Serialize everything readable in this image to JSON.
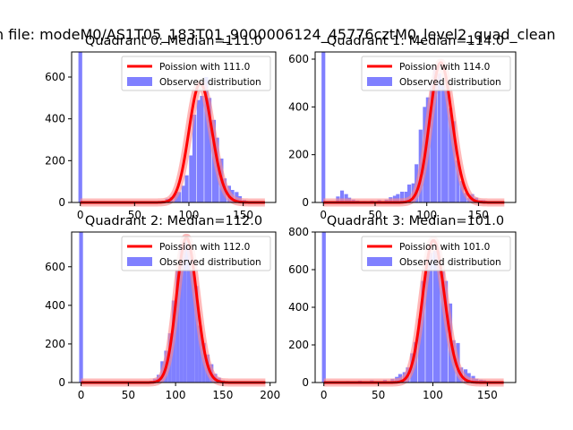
{
  "figure": {
    "suptitle": "n file: modeM0/AS1T05_183T01_9000006124_45776cztM0_level2_quad_clean"
  },
  "legend_labels": [
    "Poission with",
    "Observed distribution"
  ],
  "colors": {
    "hist": "#8080ff",
    "fit": "#ff0000",
    "fit_halo": "#ff8888"
  },
  "chart_data": [
    {
      "type": "bar",
      "title": "Quadrant 0: Median=111.0",
      "median": 111.0,
      "xlim": [
        -8,
        180
      ],
      "ylim": [
        0,
        720
      ],
      "xticks": [
        0,
        50,
        100,
        150
      ],
      "yticks": [
        0,
        200,
        400,
        600
      ],
      "legend": [
        "Poission with 111.0",
        "Observed distribution"
      ],
      "legend_position": "upper right",
      "bin_width": 3.5,
      "bins": [
        [
          0,
          720
        ],
        [
          76,
          8
        ],
        [
          80,
          18
        ],
        [
          84,
          26
        ],
        [
          88,
          42
        ],
        [
          91,
          50
        ],
        [
          95,
          80
        ],
        [
          98,
          130
        ],
        [
          102,
          225
        ],
        [
          105,
          420
        ],
        [
          109,
          490
        ],
        [
          112,
          510
        ],
        [
          116,
          600
        ],
        [
          119,
          500
        ],
        [
          123,
          395
        ],
        [
          126,
          310
        ],
        [
          130,
          210
        ],
        [
          133,
          115
        ],
        [
          137,
          80
        ],
        [
          140,
          60
        ],
        [
          144,
          50
        ],
        [
          147,
          30
        ],
        [
          151,
          12
        ],
        [
          155,
          4
        ]
      ],
      "poisson_lambda": 111.0,
      "poisson_peak": 570,
      "poisson_xrange": [
        0,
        170
      ]
    },
    {
      "type": "bar",
      "title": "Quadrant 1: Median=114.0",
      "median": 114.0,
      "xlim": [
        -8,
        186
      ],
      "ylim": [
        0,
        630
      ],
      "xticks": [
        0,
        50,
        100,
        150
      ],
      "yticks": [
        0,
        200,
        400,
        600
      ],
      "legend": [
        "Poission with 114.0",
        "Observed distribution"
      ],
      "legend_position": "upper right",
      "bin_width": 3.6,
      "bins": [
        [
          0,
          630
        ],
        [
          14,
          25
        ],
        [
          18,
          50
        ],
        [
          22,
          35
        ],
        [
          25,
          20
        ],
        [
          29,
          12
        ],
        [
          33,
          8
        ],
        [
          40,
          6
        ],
        [
          47,
          8
        ],
        [
          54,
          10
        ],
        [
          61,
          12
        ],
        [
          65,
          22
        ],
        [
          69,
          28
        ],
        [
          72,
          35
        ],
        [
          76,
          45
        ],
        [
          80,
          45
        ],
        [
          83,
          75
        ],
        [
          87,
          80
        ],
        [
          90,
          160
        ],
        [
          94,
          305
        ],
        [
          98,
          400
        ],
        [
          101,
          440
        ],
        [
          105,
          500
        ],
        [
          108,
          565
        ],
        [
          112,
          540
        ],
        [
          116,
          490
        ],
        [
          119,
          470
        ],
        [
          123,
          395
        ],
        [
          126,
          340
        ],
        [
          130,
          175
        ],
        [
          134,
          90
        ],
        [
          137,
          40
        ],
        [
          141,
          20
        ],
        [
          144,
          35
        ],
        [
          148,
          20
        ],
        [
          152,
          10
        ],
        [
          155,
          10
        ],
        [
          159,
          6
        ]
      ],
      "poisson_lambda": 114.0,
      "poisson_peak": 585,
      "poisson_xrange": [
        0,
        175
      ]
    },
    {
      "type": "bar",
      "title": "Quadrant 2: Median=112.0",
      "median": 112.0,
      "xlim": [
        -10,
        206
      ],
      "ylim": [
        0,
        780
      ],
      "xticks": [
        0,
        50,
        100,
        150,
        200
      ],
      "yticks": [
        0,
        200,
        400,
        600
      ],
      "legend": [
        "Poission with 112.0",
        "Observed distribution"
      ],
      "legend_position": "upper right",
      "bin_width": 4.0,
      "bins": [
        [
          0,
          780
        ],
        [
          66,
          6
        ],
        [
          74,
          8
        ],
        [
          78,
          20
        ],
        [
          82,
          40
        ],
        [
          86,
          110
        ],
        [
          90,
          165
        ],
        [
          94,
          255
        ],
        [
          98,
          425
        ],
        [
          102,
          580
        ],
        [
          106,
          710
        ],
        [
          110,
          740
        ],
        [
          114,
          700
        ],
        [
          118,
          580
        ],
        [
          122,
          500
        ],
        [
          126,
          295
        ],
        [
          130,
          205
        ],
        [
          134,
          145
        ],
        [
          138,
          95
        ],
        [
          142,
          45
        ],
        [
          146,
          25
        ],
        [
          150,
          12
        ],
        [
          154,
          6
        ],
        [
          158,
          4
        ]
      ],
      "poisson_lambda": 112.0,
      "poisson_peak": 750,
      "poisson_xrange": [
        0,
        195
      ]
    },
    {
      "type": "bar",
      "title": "Quadrant 3: Median=101.0",
      "median": 101.0,
      "xlim": [
        -8,
        176
      ],
      "ylim": [
        0,
        800
      ],
      "xticks": [
        0,
        50,
        100,
        150
      ],
      "yticks": [
        0,
        200,
        400,
        600,
        800
      ],
      "legend": [
        "Poission with 101.0",
        "Observed distribution"
      ],
      "legend_position": "upper right",
      "bin_width": 3.5,
      "bins": [
        [
          0,
          800
        ],
        [
          22,
          8
        ],
        [
          33,
          10
        ],
        [
          44,
          12
        ],
        [
          56,
          14
        ],
        [
          63,
          20
        ],
        [
          67,
          30
        ],
        [
          70,
          45
        ],
        [
          74,
          55
        ],
        [
          77,
          80
        ],
        [
          81,
          155
        ],
        [
          84,
          215
        ],
        [
          88,
          340
        ],
        [
          91,
          540
        ],
        [
          95,
          620
        ],
        [
          98,
          690
        ],
        [
          102,
          700
        ],
        [
          105,
          700
        ],
        [
          109,
          590
        ],
        [
          112,
          540
        ],
        [
          116,
          420
        ],
        [
          119,
          225
        ],
        [
          123,
          210
        ],
        [
          126,
          80
        ],
        [
          130,
          70
        ],
        [
          133,
          50
        ],
        [
          137,
          35
        ],
        [
          140,
          20
        ],
        [
          144,
          15
        ],
        [
          147,
          12
        ],
        [
          151,
          8
        ],
        [
          154,
          5
        ]
      ],
      "poisson_lambda": 101.0,
      "poisson_peak": 755,
      "poisson_xrange": [
        0,
        165
      ]
    }
  ]
}
